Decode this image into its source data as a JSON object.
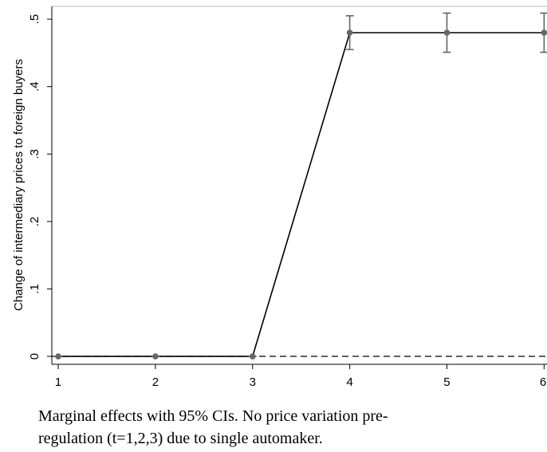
{
  "chart_data": {
    "type": "line",
    "ylabel": "Change of intermediary prices to foreign buyers",
    "x": [
      1,
      2,
      3,
      4,
      5,
      6
    ],
    "series": [
      {
        "color": "#000000",
        "marker_color": "#666666",
        "values": [
          0,
          0,
          0,
          0.48,
          0.48,
          0.48
        ],
        "errors": [
          0,
          0,
          0,
          0.025,
          0.029,
          0.029
        ]
      }
    ],
    "hline": 0,
    "xlim": [
      0.934,
      6.03
    ],
    "xticks": [
      1,
      2,
      3,
      4,
      5,
      6
    ],
    "ylim": [
      -0.0118,
      0.519
    ],
    "yticks": [
      0,
      {
        "value": 0.1,
        "label": ".1"
      },
      {
        "value": 0.2,
        "label": ".2"
      },
      {
        "value": 0.3,
        "label": ".3"
      },
      {
        "value": 0.4,
        "label": ".4"
      },
      {
        "value": 0.5,
        "label": ".5"
      }
    ],
    "caption_lines": [
      "Marginal effects with 95% CIs.  No price variation pre-",
      "regulation (t=1,2,3) due to single automaker."
    ]
  }
}
